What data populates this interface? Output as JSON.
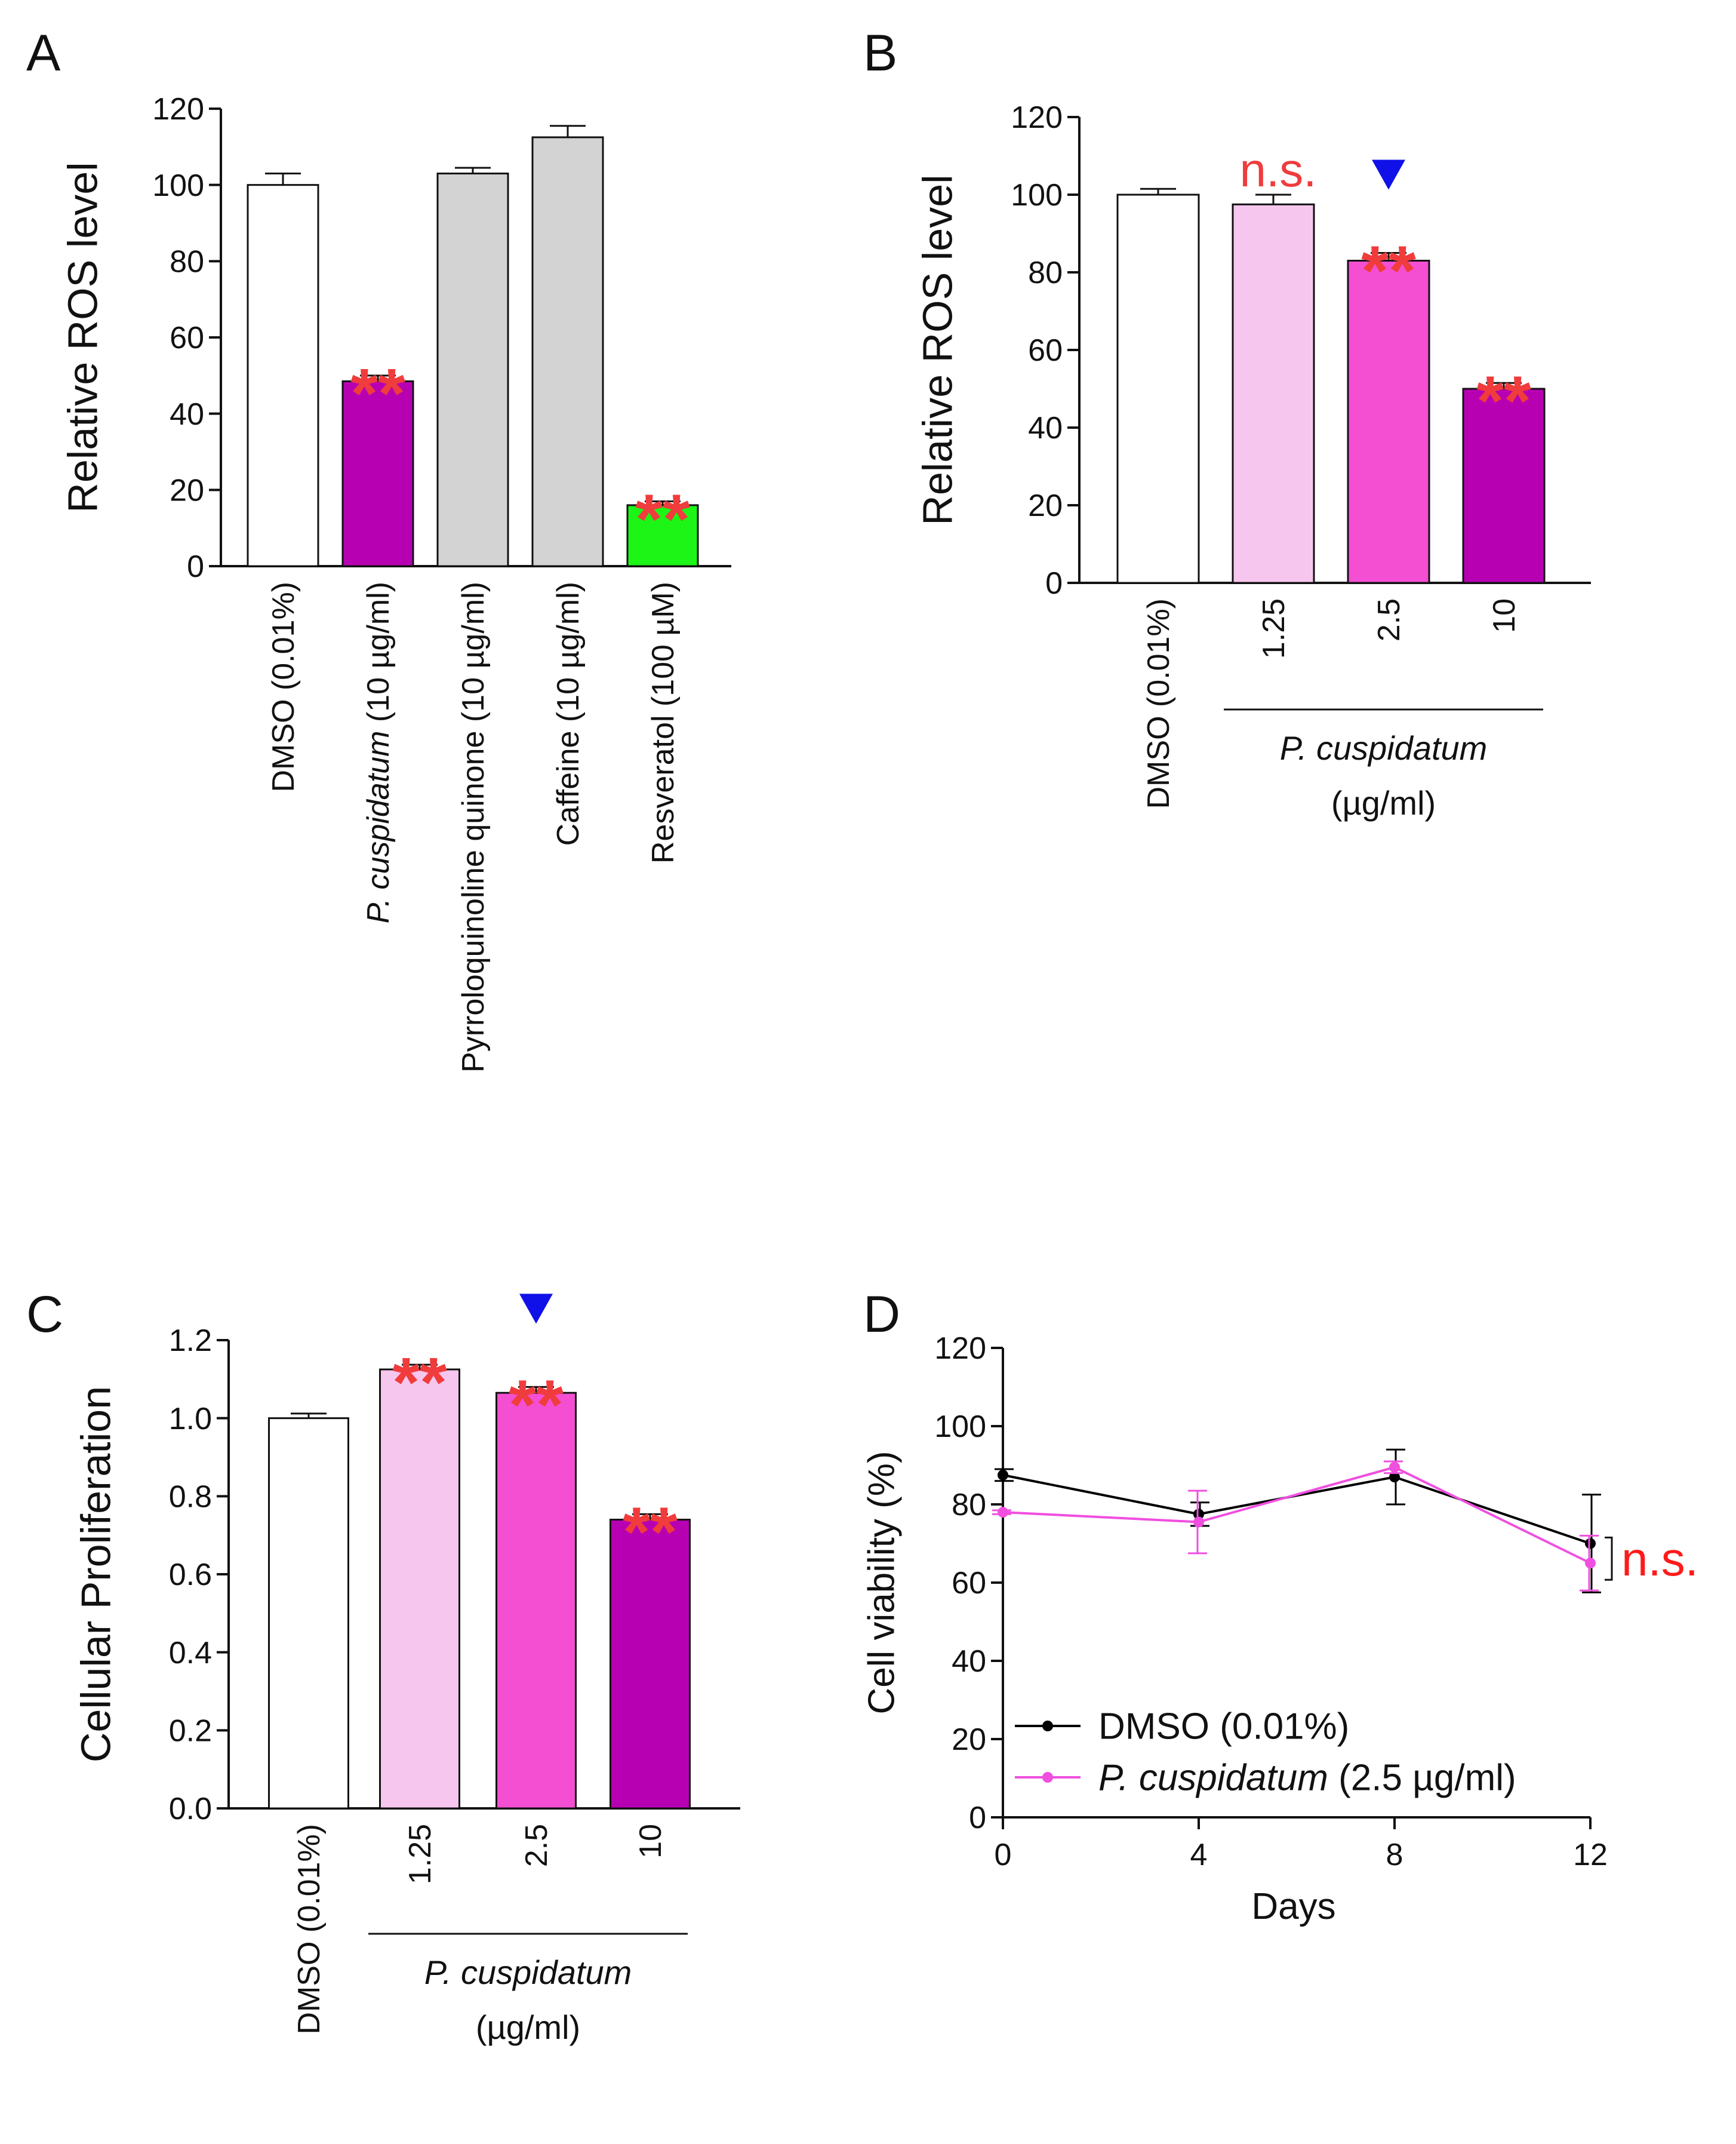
{
  "colors": {
    "white": "#ffffff",
    "grey": "#d3d3d3",
    "magenta_dark": "#b800b3",
    "pink_light": "#f7c6ee",
    "pink_mid": "#f44ed2",
    "green": "#1cf516",
    "star_red": "#f03c3c",
    "ns_red": "#ff1a1a",
    "triangle_blue": "#1010e8",
    "black": "#000000",
    "pink_line": "#f04fe0"
  },
  "chart_data": [
    {
      "panel": "A",
      "type": "bar",
      "ylabel": "Relative ROS level",
      "ylim": [
        0,
        120
      ],
      "yticks": [
        "0",
        "20",
        "40",
        "60",
        "80",
        "100",
        "120"
      ],
      "categories": [
        {
          "pre": "",
          "italic": "",
          "post": "DMSO (0.01%)"
        },
        {
          "pre": "",
          "italic": "P. cuspidatum",
          "post": " (10 µg/ml)"
        },
        {
          "pre": "",
          "italic": "",
          "post": "Pyrroloquinoline quinone (10 µg/ml)"
        },
        {
          "pre": "",
          "italic": "",
          "post": "Caffeine (10 µg/ml)"
        },
        {
          "pre": "",
          "italic": "",
          "post": "Resveratol (100 µM)"
        }
      ],
      "values": [
        100,
        48.5,
        103,
        112.5,
        16
      ],
      "errors": [
        3,
        1.5,
        1.5,
        3,
        1
      ],
      "colors": [
        "white",
        "magenta_dark",
        "grey",
        "grey",
        "green"
      ],
      "annotations": [
        {
          "index": 1,
          "text": "**",
          "kind": "star"
        },
        {
          "index": 4,
          "text": "**",
          "kind": "star"
        }
      ]
    },
    {
      "panel": "B",
      "type": "bar",
      "ylabel": "Relative ROS level",
      "ylim": [
        0,
        120
      ],
      "yticks": [
        "0",
        "20",
        "40",
        "60",
        "80",
        "100",
        "120"
      ],
      "categories": [
        "DMSO (0.01%)",
        "1.25",
        "2.5",
        "10"
      ],
      "values": [
        100,
        97.5,
        83,
        50
      ],
      "errors": [
        1.5,
        2.5,
        2,
        1.5
      ],
      "colors": [
        "white",
        "pink_light",
        "pink_mid",
        "magenta_dark"
      ],
      "group_label_italic": "P. cuspidatum",
      "group_label_units": "(µg/ml)",
      "annotations": [
        {
          "index": 1,
          "text": "n.s.",
          "kind": "ns"
        },
        {
          "index": 2,
          "text": "**",
          "kind": "star"
        },
        {
          "index": 2,
          "text": "▼",
          "kind": "triangle"
        },
        {
          "index": 3,
          "text": "**",
          "kind": "star"
        }
      ]
    },
    {
      "panel": "C",
      "type": "bar",
      "ylabel": "Cellular Proliferation",
      "ylim": [
        0,
        1.2
      ],
      "yticks": [
        "0.0",
        "0.2",
        "0.4",
        "0.6",
        "0.8",
        "1.0",
        "1.2"
      ],
      "categories": [
        "DMSO (0.01%)",
        "1.25",
        "2.5",
        "10"
      ],
      "values": [
        1.0,
        1.125,
        1.065,
        0.74
      ],
      "errors": [
        0.012,
        0.012,
        0.015,
        0.014
      ],
      "colors": [
        "white",
        "pink_light",
        "pink_mid",
        "magenta_dark"
      ],
      "group_label_italic": "P. cuspidatum",
      "group_label_units": "(µg/ml)",
      "annotations": [
        {
          "index": 1,
          "text": "**",
          "kind": "star"
        },
        {
          "index": 2,
          "text": "**",
          "kind": "star"
        },
        {
          "index": 2,
          "text": "▼",
          "kind": "triangle"
        },
        {
          "index": 3,
          "text": "**",
          "kind": "star"
        }
      ]
    },
    {
      "panel": "D",
      "type": "line",
      "ylabel": "Cell viability (%)",
      "xlabel": "Days",
      "xlim": [
        0,
        12
      ],
      "ylim": [
        0,
        120
      ],
      "xticks": [
        "0",
        "4",
        "8",
        "12"
      ],
      "yticks": [
        "0",
        "20",
        "40",
        "60",
        "80",
        "100",
        "120"
      ],
      "x": [
        0,
        4,
        8,
        12
      ],
      "series": [
        {
          "name": "DMSO (0.01%)",
          "name_italic": "",
          "name_rest": "DMSO (0.01%)",
          "color": "black",
          "values": [
            87.5,
            77.5,
            87,
            70
          ],
          "errors": [
            1.5,
            3,
            7,
            12.5
          ]
        },
        {
          "name": "P. cuspidatum (2.5 µg/ml)",
          "name_italic": "P. cuspidatum",
          "name_rest": " (2.5 µg/ml)",
          "color": "pink_line",
          "values": [
            78,
            75.5,
            89.5,
            65
          ],
          "errors": [
            0.5,
            8,
            1.5,
            7
          ]
        }
      ],
      "annotation": "n.s.",
      "legend_position": "bottom-left"
    }
  ]
}
